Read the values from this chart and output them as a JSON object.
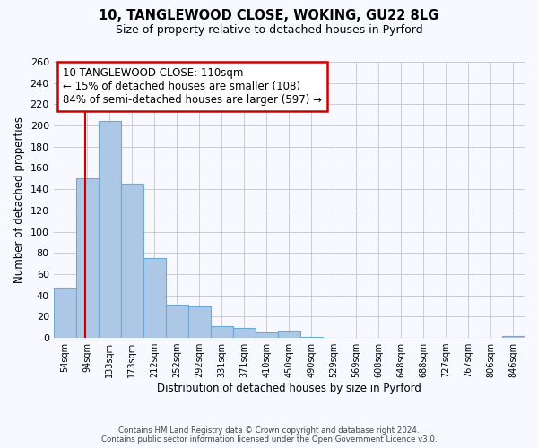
{
  "title1": "10, TANGLEWOOD CLOSE, WOKING, GU22 8LG",
  "title2": "Size of property relative to detached houses in Pyrford",
  "xlabel": "Distribution of detached houses by size in Pyrford",
  "ylabel": "Number of detached properties",
  "bin_labels": [
    "54sqm",
    "94sqm",
    "133sqm",
    "173sqm",
    "212sqm",
    "252sqm",
    "292sqm",
    "331sqm",
    "371sqm",
    "410sqm",
    "450sqm",
    "490sqm",
    "529sqm",
    "569sqm",
    "608sqm",
    "648sqm",
    "688sqm",
    "727sqm",
    "767sqm",
    "806sqm",
    "846sqm"
  ],
  "bar_values": [
    47,
    150,
    204,
    145,
    75,
    31,
    30,
    11,
    9,
    5,
    7,
    1,
    0,
    0,
    0,
    0,
    0,
    0,
    0,
    0,
    2
  ],
  "bar_color": "#adc8e6",
  "bar_edge_color": "#6aaad4",
  "property_line_color": "#cc0000",
  "annotation_text": "10 TANGLEWOOD CLOSE: 110sqm\n← 15% of detached houses are smaller (108)\n84% of semi-detached houses are larger (597) →",
  "annotation_box_color": "#ffffff",
  "annotation_border_color": "#cc0000",
  "ylim": [
    0,
    260
  ],
  "yticks": [
    0,
    20,
    40,
    60,
    80,
    100,
    120,
    140,
    160,
    180,
    200,
    220,
    240,
    260
  ],
  "footer1": "Contains HM Land Registry data © Crown copyright and database right 2024.",
  "footer2": "Contains public sector information licensed under the Open Government Licence v3.0.",
  "bg_color": "#f8f8ff",
  "grid_color": "#cccccc",
  "bin_edges_numeric": [
    54,
    94,
    133,
    173,
    212,
    252,
    292,
    331,
    371,
    410,
    450,
    490,
    529,
    569,
    608,
    648,
    688,
    727,
    767,
    806,
    846
  ],
  "prop_size": 110
}
